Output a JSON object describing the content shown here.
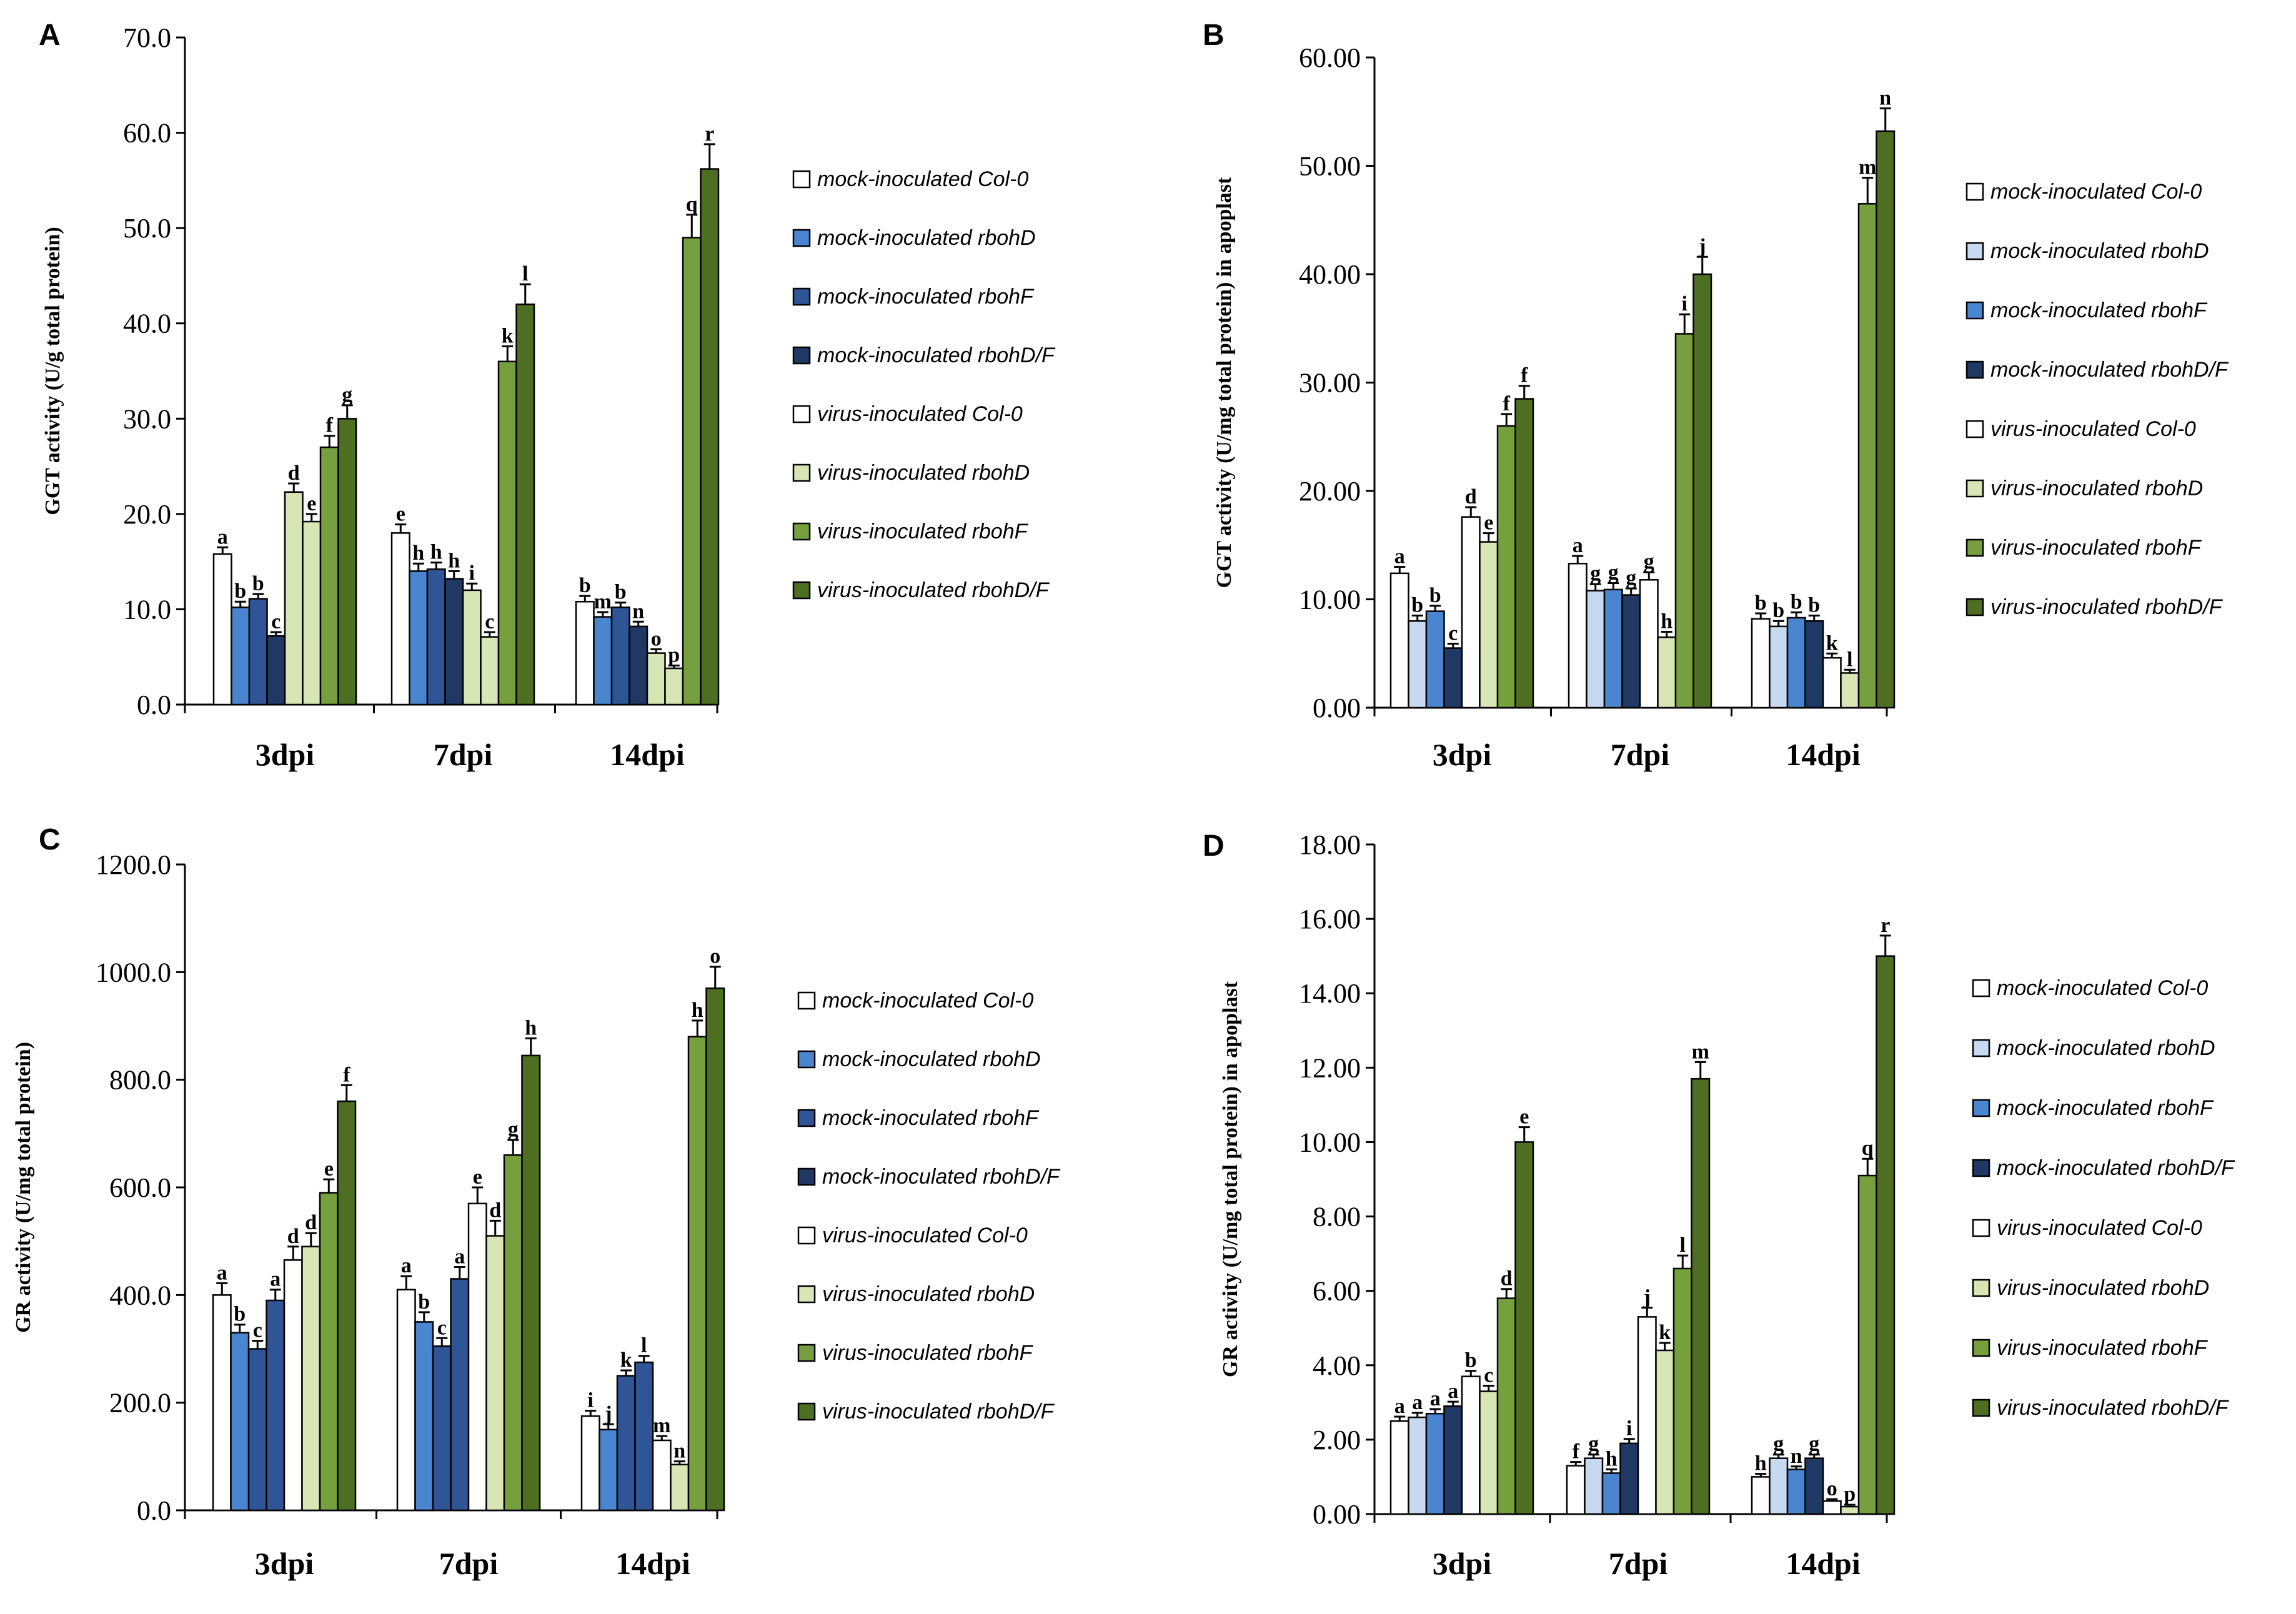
{
  "figure": {
    "series_names": [
      "mock-inoculated Col-0",
      "mock-inoculated rbohD",
      "mock-inoculated rbohF",
      "mock-inoculated rbohD/F",
      "virus-inoculated Col-0",
      "virus-inoculated rbohD",
      "virus-inoculated rbohF",
      "virus-inoculated rbohD/F"
    ],
    "series_colors": [
      "#ffffff",
      "#c6d9f1",
      "#4a86d0",
      "#1f3864",
      "#ffffff",
      "#d8e6b6",
      "#76a03e",
      "#4e6e22"
    ]
  },
  "chart_data": [
    {
      "type": "bar",
      "panel": "A",
      "ylabel": "GGT activity (U/g  total protein)",
      "categories": [
        "3dpi",
        "7dpi",
        "14dpi"
      ],
      "ylim": [
        0,
        70
      ],
      "yticks": [
        "0.0",
        "10.0",
        "20.0",
        "30.0",
        "40.0",
        "50.0",
        "60.0",
        "70.0"
      ],
      "legend_colors": [
        "#ffffff",
        "#4a86d0",
        "#2f5597",
        "#1f3864",
        "#ffffff",
        "#d8e6b6",
        "#76a03e",
        "#4e6e22"
      ],
      "bar_colors": [
        "#ffffff",
        "#4a86d0",
        "#2f5597",
        "#1f3864",
        "#d8e6b6",
        "#d8e6b6",
        "#76a03e",
        "#4e6e22"
      ],
      "series": [
        {
          "name": "mock-inoculated Col-0",
          "values": [
            15.8,
            18.0,
            10.8
          ],
          "errors": [
            0.7,
            0.9,
            0.6
          ],
          "letters": [
            "a",
            "e",
            "b"
          ]
        },
        {
          "name": "mock-inoculated rbohD",
          "values": [
            10.2,
            14.0,
            9.2
          ],
          "errors": [
            0.6,
            0.8,
            0.5
          ],
          "letters": [
            "b",
            "h",
            "m"
          ]
        },
        {
          "name": "mock-inoculated rbohF",
          "values": [
            11.1,
            14.2,
            10.2
          ],
          "errors": [
            0.5,
            0.7,
            0.5
          ],
          "letters": [
            "b",
            "h",
            "b"
          ]
        },
        {
          "name": "mock-inoculated rbohD/F",
          "values": [
            7.2,
            13.2,
            8.2
          ],
          "errors": [
            0.4,
            0.8,
            0.5
          ],
          "letters": [
            "c",
            "h",
            "n"
          ]
        },
        {
          "name": "virus-inoculated Col-0",
          "values": [
            22.3,
            12.0,
            5.4
          ],
          "errors": [
            0.9,
            0.7,
            0.4
          ],
          "letters": [
            "d",
            "i",
            "o"
          ]
        },
        {
          "name": "virus-inoculated rbohD",
          "values": [
            19.2,
            7.1,
            3.8
          ],
          "errors": [
            0.8,
            0.5,
            0.3
          ],
          "letters": [
            "e",
            "c",
            "p"
          ]
        },
        {
          "name": "virus-inoculated rbohF",
          "values": [
            27.0,
            36.0,
            49.0
          ],
          "errors": [
            1.2,
            1.6,
            2.4
          ],
          "letters": [
            "f",
            "k",
            "q"
          ]
        },
        {
          "name": "virus-inoculated rbohD/F",
          "values": [
            30.0,
            42.0,
            56.2
          ],
          "errors": [
            1.4,
            2.1,
            2.6
          ],
          "letters": [
            "g",
            "l",
            "r"
          ]
        }
      ]
    },
    {
      "type": "bar",
      "panel": "B",
      "ylabel": "GGT activity (U/mg  total protein) in apoplast",
      "categories": [
        "3dpi",
        "7dpi",
        "14dpi"
      ],
      "ylim": [
        0,
        60
      ],
      "yticks": [
        "0.00",
        "10.00",
        "20.00",
        "30.00",
        "40.00",
        "50.00",
        "60.00"
      ],
      "legend_colors": [
        "#ffffff",
        "#c6d9f1",
        "#4a86d0",
        "#1f3864",
        "#ffffff",
        "#d8e6b6",
        "#76a03e",
        "#4e6e22"
      ],
      "bar_colors": [
        "#ffffff",
        "#c6d9f1",
        "#4a86d0",
        "#1f3864",
        "#ffffff",
        "#d8e6b6",
        "#76a03e",
        "#4e6e22"
      ],
      "series": [
        {
          "name": "mock-inoculated Col-0",
          "values": [
            12.4,
            13.3,
            8.2
          ],
          "errors": [
            0.6,
            0.7,
            0.5
          ],
          "letters": [
            "a",
            "a",
            "b"
          ]
        },
        {
          "name": "mock-inoculated rbohD",
          "values": [
            8.0,
            10.8,
            7.5
          ],
          "errors": [
            0.5,
            0.6,
            0.5
          ],
          "letters": [
            "b",
            "g",
            "b"
          ]
        },
        {
          "name": "mock-inoculated rbohF",
          "values": [
            8.9,
            10.9,
            8.3
          ],
          "errors": [
            0.5,
            0.6,
            0.5
          ],
          "letters": [
            "b",
            "g",
            "b"
          ]
        },
        {
          "name": "mock-inoculated rbohD/F",
          "values": [
            5.5,
            10.4,
            8.0
          ],
          "errors": [
            0.4,
            0.6,
            0.5
          ],
          "letters": [
            "c",
            "g",
            "b"
          ]
        },
        {
          "name": "virus-inoculated Col-0",
          "values": [
            17.6,
            11.8,
            4.6
          ],
          "errors": [
            0.9,
            0.7,
            0.4
          ],
          "letters": [
            "d",
            "g",
            "k"
          ]
        },
        {
          "name": "virus-inoculated rbohD",
          "values": [
            15.3,
            6.5,
            3.2
          ],
          "errors": [
            0.8,
            0.5,
            0.3
          ],
          "letters": [
            "e",
            "h",
            "l"
          ]
        },
        {
          "name": "virus-inoculated rbohF",
          "values": [
            26.0,
            34.5,
            46.5
          ],
          "errors": [
            1.1,
            1.8,
            2.4
          ],
          "letters": [
            "f",
            "i",
            "m"
          ]
        },
        {
          "name": "virus-inoculated rbohD/F",
          "values": [
            28.5,
            40.0,
            53.2
          ],
          "errors": [
            1.2,
            1.6,
            2.1
          ],
          "letters": [
            "f",
            "j",
            "n"
          ]
        }
      ]
    },
    {
      "type": "bar",
      "panel": "C",
      "ylabel": "GR activity (U/mg total protein)",
      "categories": [
        "3dpi",
        "7dpi",
        "14dpi"
      ],
      "ylim": [
        0,
        1200
      ],
      "yticks": [
        "0.0",
        "200.0",
        "400.0",
        "600.0",
        "800.0",
        "1000.0",
        "1200.0"
      ],
      "legend_colors": [
        "#ffffff",
        "#4a86d0",
        "#2f5597",
        "#1f3864",
        "#ffffff",
        "#d8e6b6",
        "#76a03e",
        "#4e6e22"
      ],
      "bar_colors": [
        "#ffffff",
        "#4a86d0",
        "#2f5597",
        "#2f5597",
        "#ffffff",
        "#d8e6b6",
        "#76a03e",
        "#4e6e22"
      ],
      "series": [
        {
          "name": "mock-inoculated Col-0",
          "values": [
            400,
            410,
            175
          ],
          "errors": [
            22,
            25,
            10
          ],
          "letters": [
            "a",
            "a",
            "i"
          ]
        },
        {
          "name": "mock-inoculated rbohD",
          "values": [
            330,
            350,
            150
          ],
          "errors": [
            15,
            18,
            10
          ],
          "letters": [
            "b",
            "b",
            "j"
          ]
        },
        {
          "name": "mock-inoculated rbohF",
          "values": [
            300,
            305,
            250
          ],
          "errors": [
            15,
            15,
            10
          ],
          "letters": [
            "c",
            "c",
            "k"
          ]
        },
        {
          "name": "mock-inoculated rbohD/F",
          "values": [
            390,
            430,
            275
          ],
          "errors": [
            20,
            22,
            12
          ],
          "letters": [
            "a",
            "a",
            "l"
          ]
        },
        {
          "name": "virus-inoculated Col-0",
          "values": [
            465,
            570,
            130
          ],
          "errors": [
            25,
            30,
            8
          ],
          "letters": [
            "d",
            "e",
            "m"
          ]
        },
        {
          "name": "virus-inoculated rbohD",
          "values": [
            490,
            510,
            85
          ],
          "errors": [
            25,
            28,
            6
          ],
          "letters": [
            "d",
            "d",
            "n"
          ]
        },
        {
          "name": "virus-inoculated rbohF",
          "values": [
            590,
            660,
            880
          ],
          "errors": [
            25,
            28,
            30
          ],
          "letters": [
            "e",
            "g",
            "h"
          ]
        },
        {
          "name": "virus-inoculated rbohD/F",
          "values": [
            760,
            845,
            970
          ],
          "errors": [
            30,
            32,
            40
          ],
          "letters": [
            "f",
            "h",
            "o"
          ]
        }
      ]
    },
    {
      "type": "bar",
      "panel": "D",
      "ylabel": "GR activity (U/mg  total protein) in apoplast",
      "categories": [
        "3dpi",
        "7dpi",
        "14dpi"
      ],
      "ylim": [
        0,
        18
      ],
      "yticks": [
        "0.00",
        "2.00",
        "4.00",
        "6.00",
        "8.00",
        "10.00",
        "12.00",
        "14.00",
        "16.00",
        "18.00"
      ],
      "legend_colors": [
        "#ffffff",
        "#c6d9f1",
        "#4a86d0",
        "#1f3864",
        "#ffffff",
        "#d8e6b6",
        "#76a03e",
        "#4e6e22"
      ],
      "bar_colors": [
        "#ffffff",
        "#c6d9f1",
        "#4a86d0",
        "#1f3864",
        "#ffffff",
        "#d8e6b6",
        "#76a03e",
        "#4e6e22"
      ],
      "series": [
        {
          "name": "mock-inoculated Col-0",
          "values": [
            2.5,
            1.3,
            1.0
          ],
          "errors": [
            0.12,
            0.1,
            0.08
          ],
          "letters": [
            "a",
            "f",
            "h"
          ]
        },
        {
          "name": "mock-inoculated rbohD",
          "values": [
            2.6,
            1.5,
            1.5
          ],
          "errors": [
            0.12,
            0.1,
            0.1
          ],
          "letters": [
            "a",
            "g",
            "g"
          ]
        },
        {
          "name": "mock-inoculated rbohF",
          "values": [
            2.7,
            1.1,
            1.2
          ],
          "errors": [
            0.12,
            0.1,
            0.08
          ],
          "letters": [
            "a",
            "h",
            "n"
          ]
        },
        {
          "name": "mock-inoculated rbohD/F",
          "values": [
            2.9,
            1.9,
            1.5
          ],
          "errors": [
            0.12,
            0.12,
            0.1
          ],
          "letters": [
            "a",
            "i",
            "g"
          ]
        },
        {
          "name": "virus-inoculated Col-0",
          "values": [
            3.7,
            5.3,
            0.35
          ],
          "errors": [
            0.15,
            0.25,
            0.05
          ],
          "letters": [
            "b",
            "j",
            "o"
          ]
        },
        {
          "name": "virus-inoculated rbohD",
          "values": [
            3.3,
            4.4,
            0.2
          ],
          "errors": [
            0.15,
            0.2,
            0.05
          ],
          "letters": [
            "c",
            "k",
            "p"
          ]
        },
        {
          "name": "virus-inoculated rbohF",
          "values": [
            5.8,
            6.6,
            9.1
          ],
          "errors": [
            0.25,
            0.35,
            0.45
          ],
          "letters": [
            "d",
            "l",
            "q"
          ]
        },
        {
          "name": "virus-inoculated rbohD/F",
          "values": [
            10.0,
            11.7,
            15.0
          ],
          "errors": [
            0.4,
            0.45,
            0.55
          ],
          "letters": [
            "e",
            "m",
            "r"
          ]
        }
      ]
    }
  ]
}
